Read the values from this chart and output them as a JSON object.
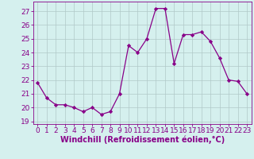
{
  "x": [
    0,
    1,
    2,
    3,
    4,
    5,
    6,
    7,
    8,
    9,
    10,
    11,
    12,
    13,
    14,
    15,
    16,
    17,
    18,
    19,
    20,
    21,
    22,
    23
  ],
  "y": [
    21.8,
    20.7,
    20.2,
    20.2,
    20.0,
    19.7,
    20.0,
    19.5,
    19.7,
    21.0,
    24.5,
    24.0,
    25.0,
    27.2,
    27.2,
    23.2,
    25.3,
    25.3,
    25.5,
    24.8,
    23.6,
    22.0,
    21.9,
    21.0
  ],
  "line_color": "#880088",
  "marker": "D",
  "marker_size": 2.2,
  "bg_color": "#d5f0ee",
  "grid_color": "#b0c8c8",
  "xlabel": "Windchill (Refroidissement éolien,°C)",
  "xlabel_color": "#880088",
  "tick_color": "#880088",
  "ylim": [
    18.8,
    27.7
  ],
  "xlim": [
    -0.5,
    23.5
  ],
  "yticks": [
    19,
    20,
    21,
    22,
    23,
    24,
    25,
    26,
    27
  ],
  "xticks": [
    0,
    1,
    2,
    3,
    4,
    5,
    6,
    7,
    8,
    9,
    10,
    11,
    12,
    13,
    14,
    15,
    16,
    17,
    18,
    19,
    20,
    21,
    22,
    23
  ],
  "font_size": 6.5,
  "xlabel_size": 7.0
}
